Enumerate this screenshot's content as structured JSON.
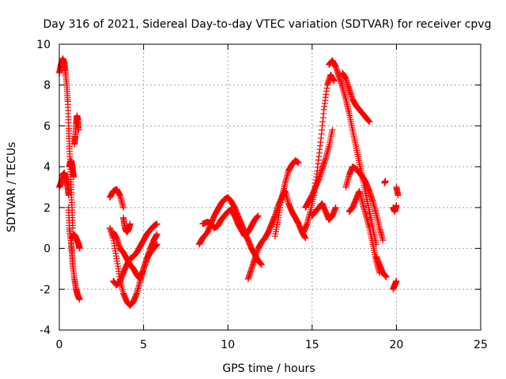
{
  "chart_data": {
    "type": "scatter",
    "title": "Day 316 of 2021, Sidereal Day-to-day VTEC variation (SDTVAR) for receiver cpvg",
    "xlabel": "GPS time / hours",
    "ylabel": "SDTVAR / TECUs",
    "xlim": [
      0,
      25
    ],
    "ylim": [
      -4,
      10
    ],
    "xticks": [
      0,
      5,
      10,
      15,
      20,
      25
    ],
    "yticks": [
      -4,
      -2,
      0,
      2,
      4,
      6,
      8,
      10
    ],
    "grid": true,
    "marker": "+",
    "marker_color": "#ff0000",
    "series": [
      {
        "name": "trace-a",
        "x": [
          0.0,
          0.1,
          0.2,
          0.3,
          0.35,
          0.45,
          0.5
        ],
        "y": [
          8.6,
          9.0,
          9.3,
          9.1,
          8.7,
          8.0,
          7.2
        ]
      },
      {
        "name": "trace-b",
        "x": [
          0.5,
          0.55,
          0.6,
          0.65,
          0.7,
          0.75,
          0.8
        ],
        "y": [
          7.2,
          6.0,
          5.0,
          4.0,
          3.0,
          2.0,
          1.0
        ]
      },
      {
        "name": "trace-c",
        "x": [
          0.0,
          0.1,
          0.2,
          0.3,
          0.4,
          0.5,
          0.55
        ],
        "y": [
          3.0,
          3.2,
          3.6,
          3.7,
          3.4,
          3.0,
          2.6
        ]
      },
      {
        "name": "trace-d",
        "x": [
          0.55,
          0.6,
          0.7,
          0.75,
          0.8,
          0.9,
          1.0,
          1.1,
          1.2
        ],
        "y": [
          2.0,
          1.0,
          0.3,
          -0.2,
          -0.8,
          -1.5,
          -2.0,
          -2.3,
          -2.5
        ]
      },
      {
        "name": "trace-e",
        "x": [
          0.6,
          0.65,
          0.7,
          0.75,
          0.8,
          0.85
        ],
        "y": [
          4.0,
          4.2,
          4.3,
          4.1,
          3.8,
          3.5
        ]
      },
      {
        "name": "trace-f",
        "x": [
          0.9,
          0.95,
          1.0,
          1.05,
          1.1,
          1.15
        ],
        "y": [
          5.1,
          5.5,
          6.1,
          6.5,
          6.3,
          5.8
        ]
      },
      {
        "name": "trace-g",
        "x": [
          0.75,
          0.85,
          0.95,
          1.05,
          1.15,
          1.2
        ],
        "y": [
          0.5,
          0.7,
          0.6,
          0.4,
          0.2,
          0.0
        ]
      },
      {
        "name": "trace-h",
        "x": [
          3.0,
          3.2,
          3.4,
          3.6,
          3.8
        ],
        "y": [
          2.5,
          2.8,
          2.9,
          2.6,
          2.0
        ]
      },
      {
        "name": "trace-i",
        "x": [
          3.8,
          3.9,
          4.0,
          4.1,
          4.2
        ],
        "y": [
          1.5,
          1.0,
          0.8,
          0.9,
          1.2
        ]
      },
      {
        "name": "trace-j",
        "x": [
          3.0,
          3.2,
          3.4,
          3.6,
          3.8,
          4.0,
          4.2,
          4.4,
          4.6,
          4.8,
          5.0,
          5.2,
          5.4,
          5.6,
          5.8
        ],
        "y": [
          1.0,
          0.5,
          -0.5,
          -1.5,
          -2.2,
          -2.6,
          -2.8,
          -2.6,
          -2.2,
          -1.6,
          -1.0,
          -0.5,
          0.0,
          0.4,
          0.7
        ]
      },
      {
        "name": "trace-k",
        "x": [
          3.2,
          3.4,
          3.6,
          3.8,
          4.0,
          4.2,
          4.4,
          4.6,
          4.8,
          5.0,
          5.2,
          5.4,
          5.6,
          5.8
        ],
        "y": [
          -1.6,
          -1.8,
          -1.6,
          -1.2,
          -0.8,
          -0.5,
          -0.4,
          -0.2,
          0.1,
          0.4,
          0.7,
          0.9,
          1.1,
          1.2
        ]
      },
      {
        "name": "trace-l",
        "x": [
          3.2,
          3.4,
          3.6,
          3.8,
          4.0,
          4.2,
          4.4,
          4.6,
          4.8,
          5.0,
          5.2,
          5.4,
          5.6,
          5.8
        ],
        "y": [
          0.8,
          0.5,
          0.0,
          -0.2,
          -0.5,
          -0.8,
          -1.0,
          -1.3,
          -1.5,
          -1.0,
          -0.5,
          -0.2,
          0.0,
          0.2
        ]
      },
      {
        "name": "trace-m",
        "x": [
          8.3,
          8.5,
          8.8,
          9.0,
          9.2,
          9.4,
          9.6,
          9.8,
          10.0,
          10.2,
          10.4,
          10.6,
          10.8,
          11.0,
          11.2,
          11.4,
          11.6,
          11.8,
          12.0
        ],
        "y": [
          0.2,
          0.5,
          0.8,
          1.2,
          1.6,
          1.9,
          2.2,
          2.4,
          2.5,
          2.3,
          2.0,
          1.6,
          1.2,
          0.8,
          0.4,
          0.0,
          -0.3,
          -0.6,
          -0.8
        ]
      },
      {
        "name": "trace-n",
        "x": [
          8.5,
          8.8,
          9.0,
          9.2,
          9.4,
          9.6,
          9.8,
          10.0,
          10.2,
          10.4,
          10.6,
          10.8,
          11.0,
          11.2,
          11.4,
          11.6,
          11.8
        ],
        "y": [
          1.2,
          1.3,
          1.2,
          1.0,
          1.1,
          1.4,
          1.6,
          1.8,
          1.9,
          1.6,
          1.2,
          0.9,
          0.6,
          0.8,
          1.1,
          1.4,
          1.6
        ]
      },
      {
        "name": "trace-o",
        "x": [
          11.2,
          11.4,
          11.6,
          11.8,
          12.0,
          12.2,
          12.4,
          12.6,
          12.8,
          13.0,
          13.2,
          13.4
        ],
        "y": [
          -1.5,
          -1.0,
          -0.5,
          0.0,
          0.3,
          0.5,
          0.8,
          1.2,
          1.6,
          2.1,
          2.5,
          2.8
        ]
      },
      {
        "name": "trace-p",
        "x": [
          12.8,
          13.0,
          13.2,
          13.4,
          13.6,
          13.8,
          14.0,
          14.2
        ],
        "y": [
          0.6,
          1.5,
          2.5,
          3.2,
          3.8,
          4.1,
          4.3,
          4.2
        ]
      },
      {
        "name": "trace-q",
        "x": [
          13.4,
          13.6,
          13.8,
          14.0,
          14.2,
          14.4,
          14.6
        ],
        "y": [
          2.8,
          2.2,
          1.8,
          1.5,
          1.2,
          0.8,
          0.5
        ]
      },
      {
        "name": "trace-r",
        "x": [
          14.5,
          14.7,
          14.9,
          15.1,
          15.3,
          15.5,
          15.7,
          15.9,
          16.1,
          16.3
        ],
        "y": [
          0.8,
          1.2,
          1.8,
          2.6,
          3.8,
          5.2,
          6.8,
          8.0,
          8.5,
          8.2
        ]
      },
      {
        "name": "trace-s",
        "x": [
          14.6,
          14.8,
          15.0,
          15.2,
          15.4,
          15.6,
          15.8,
          16.0,
          16.2
        ],
        "y": [
          2.0,
          2.3,
          2.6,
          3.0,
          3.4,
          3.9,
          4.4,
          5.0,
          5.8
        ]
      },
      {
        "name": "trace-t",
        "x": [
          15.0,
          15.2,
          15.4,
          15.6,
          15.8,
          16.0,
          16.2,
          16.4
        ],
        "y": [
          1.6,
          1.8,
          2.0,
          2.2,
          1.8,
          1.4,
          1.6,
          2.0
        ]
      },
      {
        "name": "trace-u",
        "x": [
          16.0,
          16.2,
          16.4,
          16.6,
          16.8,
          17.0,
          17.2,
          17.4,
          17.6,
          17.8,
          18.0,
          18.2,
          18.4,
          18.6,
          18.8
        ],
        "y": [
          9.0,
          9.2,
          8.9,
          8.4,
          7.9,
          7.3,
          6.6,
          5.8,
          5.0,
          4.2,
          3.4,
          2.6,
          1.8,
          1.0,
          0.2
        ]
      },
      {
        "name": "trace-v",
        "x": [
          16.8,
          17.0,
          17.2,
          17.4,
          17.6,
          17.8,
          18.0,
          18.2,
          18.4
        ],
        "y": [
          8.6,
          8.3,
          7.8,
          7.3,
          7.0,
          6.8,
          6.6,
          6.4,
          6.2
        ]
      },
      {
        "name": "trace-w",
        "x": [
          17.0,
          17.2,
          17.4,
          17.6,
          17.8,
          18.0,
          18.2,
          18.4,
          18.6,
          18.8,
          19.0,
          19.2
        ],
        "y": [
          3.0,
          3.6,
          4.0,
          3.9,
          3.7,
          3.5,
          3.2,
          2.8,
          2.3,
          1.7,
          1.0,
          0.4
        ]
      },
      {
        "name": "trace-x",
        "x": [
          17.2,
          17.4,
          17.6,
          17.8,
          18.0,
          18.2,
          18.4,
          18.6,
          18.8,
          19.0
        ],
        "y": [
          1.8,
          2.0,
          2.4,
          2.8,
          2.2,
          1.6,
          1.0,
          0.2,
          -0.6,
          -1.2
        ]
      },
      {
        "name": "trace-y",
        "x": [
          18.8,
          19.0,
          19.2,
          19.4
        ],
        "y": [
          -0.4,
          -0.8,
          -1.2,
          -1.4
        ]
      },
      {
        "name": "trace-z",
        "x": [
          19.3,
          19.35
        ],
        "y": [
          3.2,
          3.3
        ]
      },
      {
        "name": "trace-aa",
        "x": [
          19.8,
          19.9,
          20.0
        ],
        "y": [
          2.0,
          1.8,
          2.1
        ]
      },
      {
        "name": "trace-ab",
        "x": [
          19.8,
          19.9,
          20.0
        ],
        "y": [
          -2.0,
          -1.8,
          -1.6
        ]
      },
      {
        "name": "trace-ac",
        "x": [
          20.0,
          20.1
        ],
        "y": [
          3.0,
          2.6
        ]
      }
    ]
  }
}
